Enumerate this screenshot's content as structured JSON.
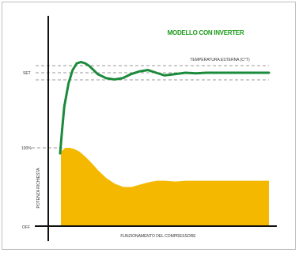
{
  "chart_data": {
    "type": "area",
    "title": "MODELLO CON INVERTER",
    "xlabel": "FUNZIONAMENTO DEL COMPRESSORE",
    "ylabel_lower": "POTENZA RICHIESTA",
    "tick_labels": {
      "set": "SET",
      "hundred": "100%",
      "off": "OFF"
    },
    "annotation": "TEMPERATURA ESTERNA (C°T)",
    "colors": {
      "temperature_line": "#1b8a3a",
      "power_area": "#f5b800",
      "dashed": "#999999"
    },
    "series": [
      {
        "kind": "line",
        "x": [
          0,
          1,
          2,
          4,
          6,
          8,
          10,
          12,
          14,
          16,
          18,
          22,
          26,
          30,
          34,
          38,
          42,
          46,
          50,
          55,
          60,
          65,
          70,
          75,
          80,
          85,
          90,
          95,
          100
        ],
        "values": [
          0.4,
          0.58,
          0.75,
          0.92,
          1.02,
          1.07,
          1.08,
          1.07,
          1.05,
          1.02,
          0.99,
          0.96,
          0.95,
          0.96,
          0.99,
          1.01,
          1.02,
          1.0,
          0.98,
          0.99,
          1.0,
          0.995,
          1.0,
          1.0,
          1.0,
          1.0,
          1.0,
          1.0,
          1.0
        ]
      },
      {
        "kind": "area",
        "x": [
          0,
          2,
          4,
          6,
          9,
          12,
          15,
          18,
          22,
          26,
          30,
          34,
          38,
          42,
          46,
          50,
          55,
          60,
          65,
          70,
          75,
          80,
          85,
          90,
          95,
          100
        ],
        "values": [
          0.95,
          1.0,
          1.0,
          0.99,
          0.95,
          0.88,
          0.8,
          0.71,
          0.61,
          0.54,
          0.5,
          0.5,
          0.53,
          0.56,
          0.58,
          0.58,
          0.57,
          0.58,
          0.58,
          0.58,
          0.58,
          0.58,
          0.58,
          0.58,
          0.58,
          0.58
        ]
      }
    ],
    "grid": false,
    "legend": "none"
  }
}
